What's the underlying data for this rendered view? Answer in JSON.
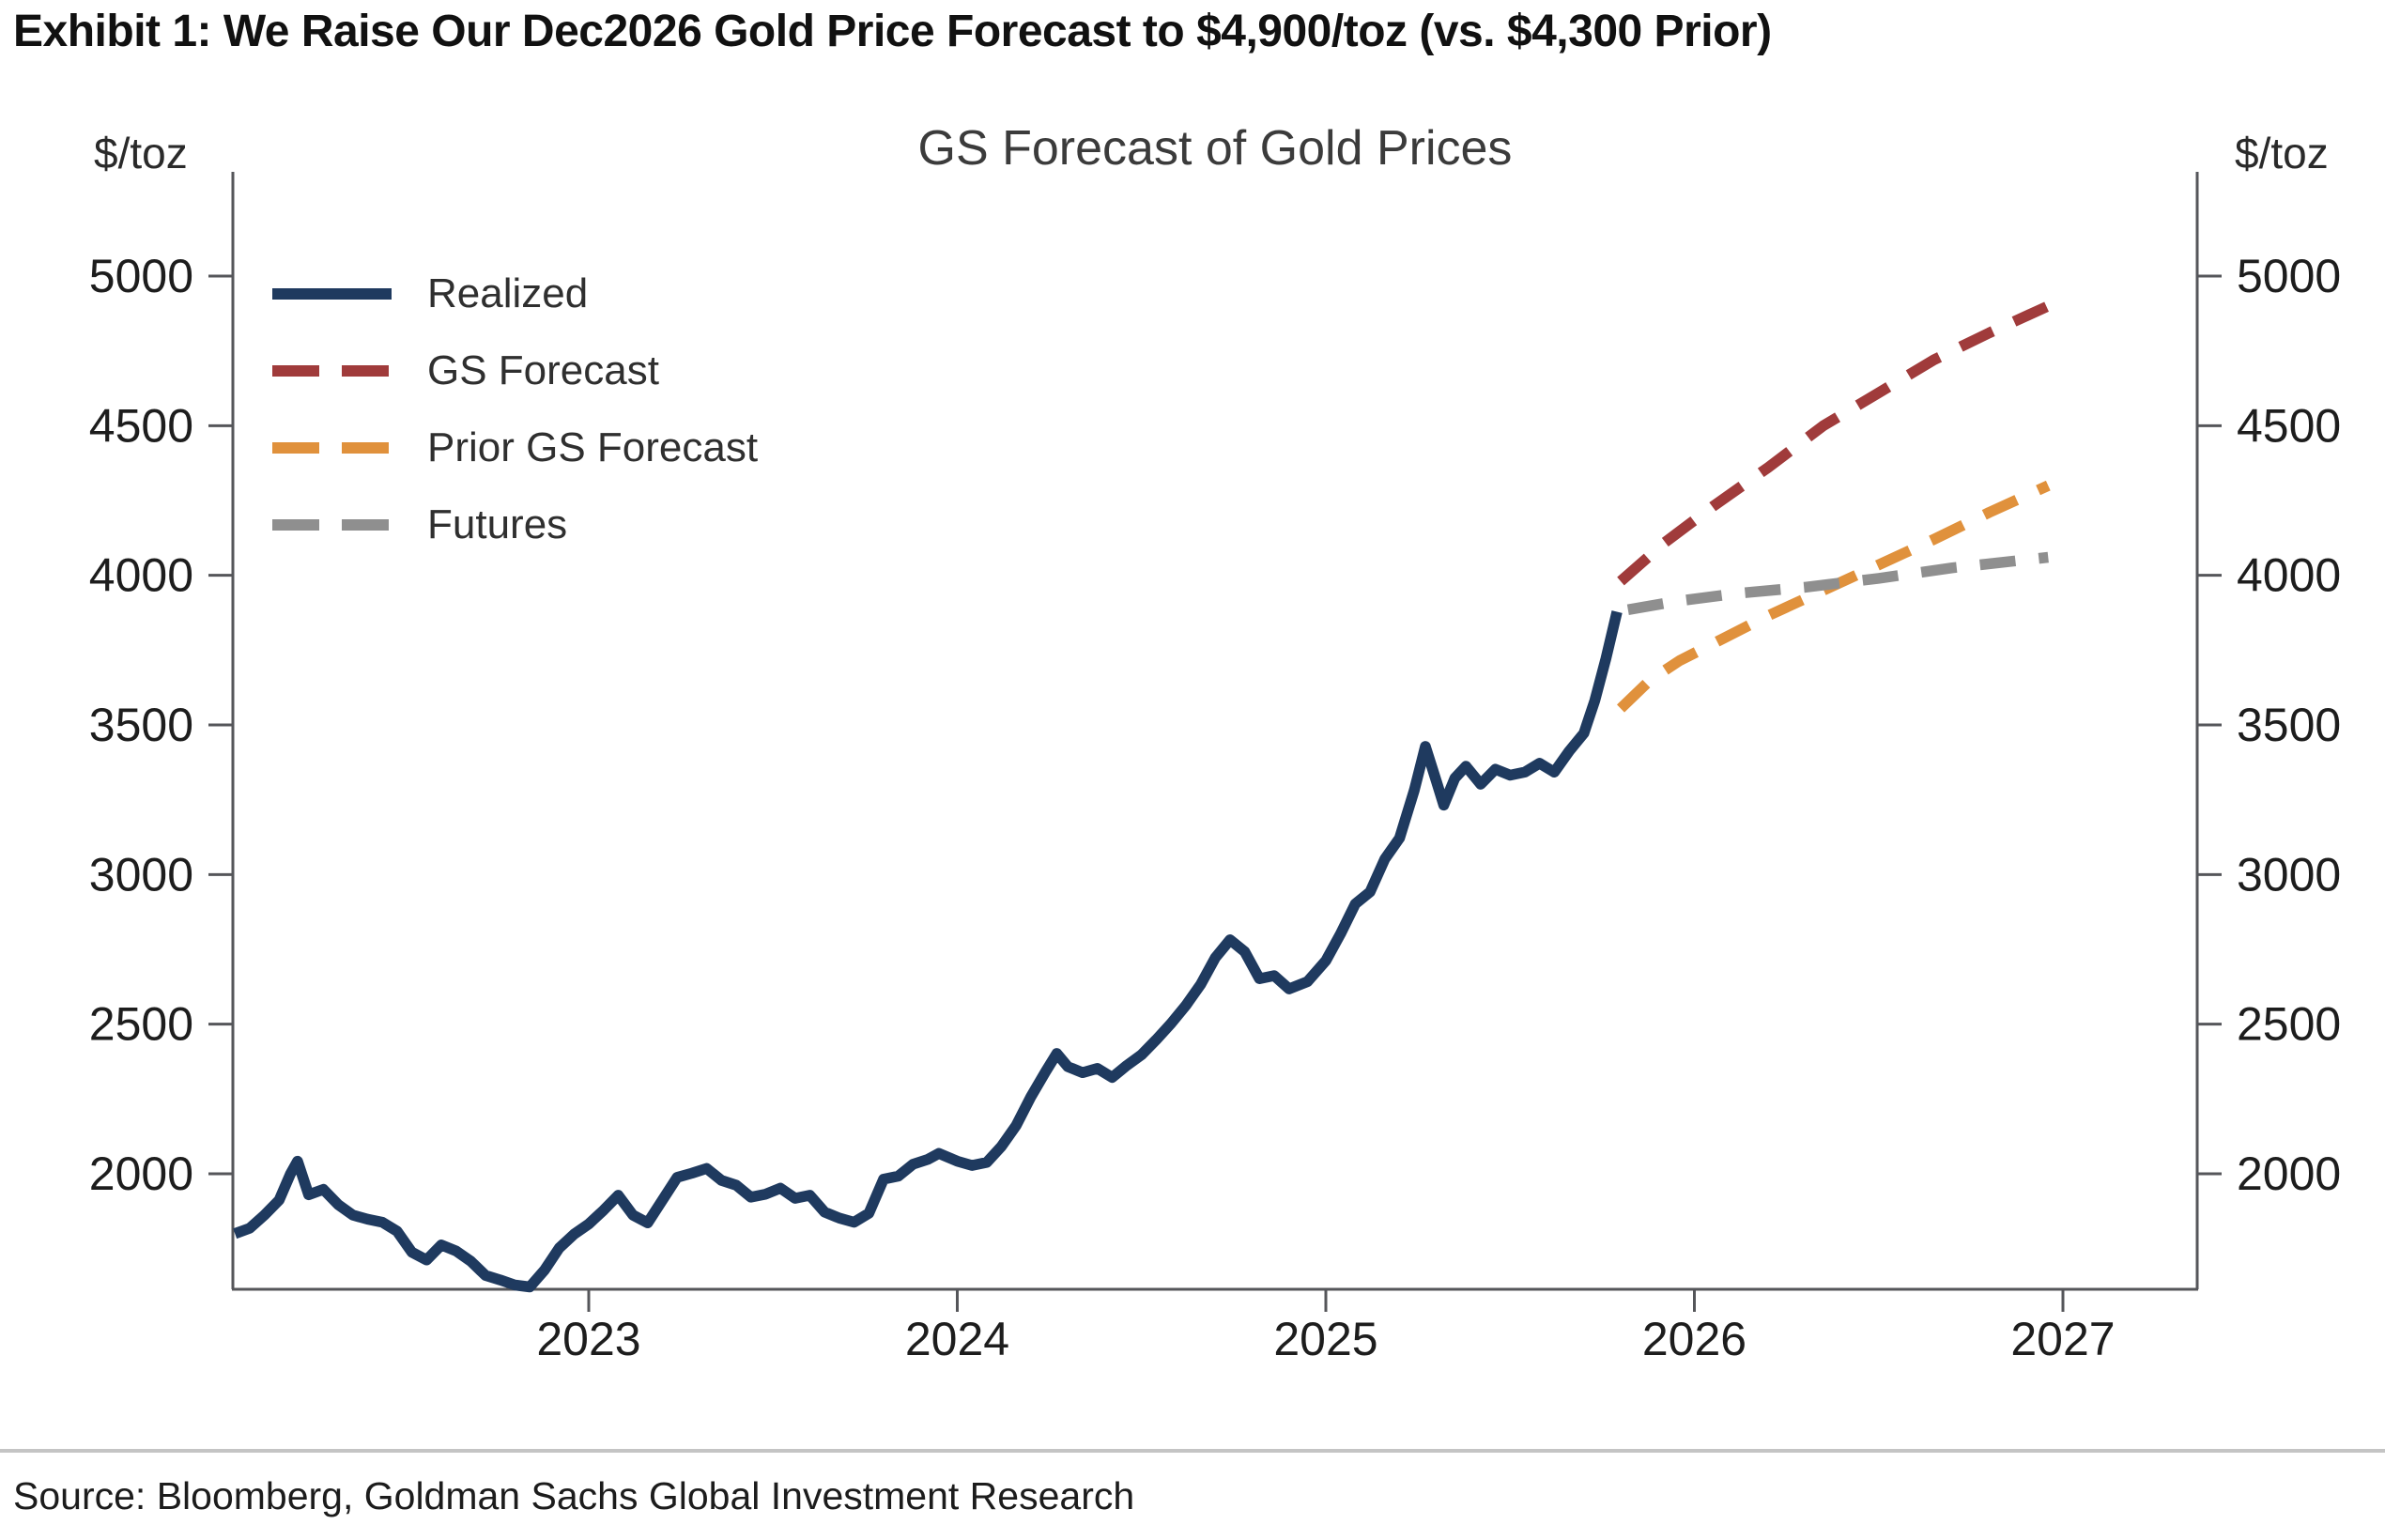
{
  "header": {
    "title": "Exhibit 1: We Raise Our Dec2026 Gold Price Forecast to $4,900/toz (vs. $4,300 Prior)"
  },
  "footer": {
    "source": "Source: Bloomberg, Goldman Sachs Global Investment Research"
  },
  "chart_data": {
    "type": "line",
    "title": "GS Forecast of Gold Prices",
    "y_unit_left": "$/toz",
    "y_unit_right": "$/toz",
    "xlabel": "",
    "ylabel": "$/toz",
    "ylim": [
      1614,
      5348
    ],
    "xlim": [
      2022.03,
      2027.46
    ],
    "y_ticks": [
      2000,
      2500,
      3000,
      3500,
      4000,
      4500,
      5000
    ],
    "x_ticks": [
      2023,
      2024,
      2025,
      2026,
      2027
    ],
    "grid": false,
    "legend_position": "top-left",
    "axis_color": "#55565a",
    "tick_text_color": "#1d1d1d",
    "key_values": {
      "dec2026_forecast": 4900,
      "prior_dec2026_forecast": 4300,
      "last_realized": 3880
    },
    "series": [
      {
        "name": "Realized",
        "color": "#1F3A5F",
        "style": "solid",
        "points": [
          [
            2022.04,
            1800
          ],
          [
            2022.08,
            1818
          ],
          [
            2022.12,
            1862
          ],
          [
            2022.16,
            1912
          ],
          [
            2022.19,
            1998
          ],
          [
            2022.21,
            2042
          ],
          [
            2022.24,
            1930
          ],
          [
            2022.28,
            1948
          ],
          [
            2022.32,
            1897
          ],
          [
            2022.36,
            1862
          ],
          [
            2022.4,
            1848
          ],
          [
            2022.44,
            1838
          ],
          [
            2022.48,
            1808
          ],
          [
            2022.52,
            1738
          ],
          [
            2022.56,
            1712
          ],
          [
            2022.6,
            1762
          ],
          [
            2022.64,
            1742
          ],
          [
            2022.68,
            1708
          ],
          [
            2022.72,
            1660
          ],
          [
            2022.76,
            1645
          ],
          [
            2022.8,
            1628
          ],
          [
            2022.84,
            1622
          ],
          [
            2022.88,
            1678
          ],
          [
            2022.92,
            1752
          ],
          [
            2022.96,
            1798
          ],
          [
            2023.0,
            1832
          ],
          [
            2023.04,
            1878
          ],
          [
            2023.08,
            1928
          ],
          [
            2023.12,
            1862
          ],
          [
            2023.16,
            1836
          ],
          [
            2023.2,
            1912
          ],
          [
            2023.24,
            1988
          ],
          [
            2023.28,
            2002
          ],
          [
            2023.32,
            2018
          ],
          [
            2023.36,
            1978
          ],
          [
            2023.4,
            1962
          ],
          [
            2023.44,
            1922
          ],
          [
            2023.48,
            1932
          ],
          [
            2023.52,
            1952
          ],
          [
            2023.56,
            1918
          ],
          [
            2023.6,
            1928
          ],
          [
            2023.64,
            1872
          ],
          [
            2023.68,
            1852
          ],
          [
            2023.72,
            1838
          ],
          [
            2023.76,
            1868
          ],
          [
            2023.8,
            1982
          ],
          [
            2023.84,
            1992
          ],
          [
            2023.88,
            2032
          ],
          [
            2023.92,
            2048
          ],
          [
            2023.95,
            2068
          ],
          [
            2024.0,
            2042
          ],
          [
            2024.04,
            2028
          ],
          [
            2024.08,
            2038
          ],
          [
            2024.12,
            2092
          ],
          [
            2024.16,
            2162
          ],
          [
            2024.2,
            2258
          ],
          [
            2024.24,
            2342
          ],
          [
            2024.27,
            2402
          ],
          [
            2024.3,
            2358
          ],
          [
            2024.34,
            2338
          ],
          [
            2024.38,
            2352
          ],
          [
            2024.42,
            2322
          ],
          [
            2024.46,
            2362
          ],
          [
            2024.5,
            2398
          ],
          [
            2024.54,
            2448
          ],
          [
            2024.58,
            2502
          ],
          [
            2024.62,
            2562
          ],
          [
            2024.66,
            2632
          ],
          [
            2024.7,
            2722
          ],
          [
            2024.74,
            2782
          ],
          [
            2024.78,
            2742
          ],
          [
            2024.82,
            2652
          ],
          [
            2024.86,
            2662
          ],
          [
            2024.9,
            2618
          ],
          [
            2024.95,
            2642
          ],
          [
            2025.0,
            2712
          ],
          [
            2025.04,
            2802
          ],
          [
            2025.08,
            2902
          ],
          [
            2025.12,
            2942
          ],
          [
            2025.16,
            3052
          ],
          [
            2025.2,
            3122
          ],
          [
            2025.24,
            3282
          ],
          [
            2025.27,
            3428
          ],
          [
            2025.3,
            3312
          ],
          [
            2025.32,
            3232
          ],
          [
            2025.35,
            3322
          ],
          [
            2025.38,
            3362
          ],
          [
            2025.42,
            3302
          ],
          [
            2025.46,
            3352
          ],
          [
            2025.5,
            3332
          ],
          [
            2025.54,
            3342
          ],
          [
            2025.58,
            3372
          ],
          [
            2025.62,
            3342
          ],
          [
            2025.66,
            3412
          ],
          [
            2025.7,
            3472
          ],
          [
            2025.73,
            3582
          ],
          [
            2025.76,
            3722
          ],
          [
            2025.79,
            3878
          ]
        ]
      },
      {
        "name": "GS Forecast",
        "color": "#A03B3B",
        "style": "dashed",
        "points": [
          [
            2025.8,
            3980
          ],
          [
            2025.92,
            4110
          ],
          [
            2026.05,
            4230
          ],
          [
            2026.2,
            4360
          ],
          [
            2026.35,
            4500
          ],
          [
            2026.5,
            4610
          ],
          [
            2026.65,
            4720
          ],
          [
            2026.8,
            4810
          ],
          [
            2026.96,
            4900
          ]
        ]
      },
      {
        "name": "Prior GS Forecast",
        "color": "#E0913C",
        "style": "dashed",
        "points": [
          [
            2025.8,
            3555
          ],
          [
            2025.88,
            3650
          ],
          [
            2025.96,
            3715
          ],
          [
            2026.08,
            3790
          ],
          [
            2026.2,
            3865
          ],
          [
            2026.35,
            3950
          ],
          [
            2026.5,
            4035
          ],
          [
            2026.65,
            4120
          ],
          [
            2026.8,
            4210
          ],
          [
            2026.96,
            4300
          ]
        ]
      },
      {
        "name": "Futures",
        "color": "#8F8F8F",
        "style": "dashed",
        "points": [
          [
            2025.82,
            3885
          ],
          [
            2025.96,
            3915
          ],
          [
            2026.12,
            3940
          ],
          [
            2026.3,
            3960
          ],
          [
            2026.5,
            3990
          ],
          [
            2026.7,
            4025
          ],
          [
            2026.96,
            4060
          ]
        ]
      }
    ]
  }
}
